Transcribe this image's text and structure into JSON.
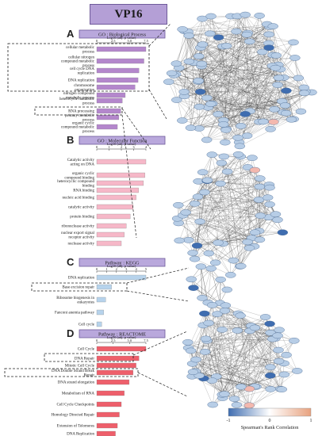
{
  "title": "VP16",
  "panels": [
    {
      "letter": "A",
      "header": "GO : Biological Process",
      "axis_label": "Log10 (adj. p value)",
      "ticks": [
        "0",
        "2.5",
        "5.0",
        "7.5"
      ],
      "terms": [
        "cellular metabolic process",
        "cellular nitrogen compound metabolic process",
        "cell cycle DNA replication",
        "DNA replication",
        "chromosome organization",
        "nitrogen compound metabolic process",
        "heterocycle metabolic process",
        "RNA processing",
        "primary metabolic process",
        "organic cyclic compound metabolic process"
      ]
    },
    {
      "letter": "B",
      "header": "GO : Molecular Function",
      "axis_label": "Log10 (adj. p value)",
      "ticks": [
        "0",
        "1",
        "2",
        "3",
        "4"
      ],
      "terms": [
        "Catalytic activity acting on DNA",
        "organic cyclic compound binding",
        "heterocyclic compound binding",
        "RNA binding",
        "nucleic acid binding",
        "catalytic activity",
        "protein binding",
        "ribonuclease activity",
        "nuclear export signal receptor activity",
        "nuclease activity"
      ]
    },
    {
      "letter": "C",
      "header": "Pathway : KEGG",
      "axis_label": "Log10 (adj. p value)",
      "ticks": [
        "0",
        "1",
        "2",
        "3",
        "4",
        "5"
      ],
      "terms": [
        "DNA replication",
        "Base excision repair",
        "Ribosome biogenesis in eukaryotes",
        "Fanconi anemia pathway",
        "Cell cycle"
      ]
    },
    {
      "letter": "D",
      "header": "Pathway : REACTOME",
      "axis_label": "Log10 (adj. p value)",
      "ticks": [
        "0",
        "2.5",
        "5.0",
        "7.5"
      ],
      "terms": [
        "Cell Cycle",
        "DNA Repair",
        "Mitotic Cell Cycle",
        "DNA Double Strand Break Repair",
        "DNA strand elongation",
        "Metabolism of RNA",
        "Cell Cycle Checkpoints",
        "Homology Directed Repair",
        "Extension of Telomeres",
        "DNA Replication"
      ]
    }
  ],
  "legend": {
    "title": "Spearman's Rank Correlation",
    "min": "-1",
    "mid": "0",
    "max": "1",
    "colors": [
      "#3f6db0",
      "#ffffff",
      "#e8a27f"
    ]
  },
  "colors": {
    "A": "#b487cc",
    "B": "#f6b8c8",
    "C": "#b7d3ec",
    "D": "#ee5f6b",
    "node_blue": "#b7cde6",
    "node_dark": "#3f6db0",
    "node_red": "#f3b8ae"
  }
}
